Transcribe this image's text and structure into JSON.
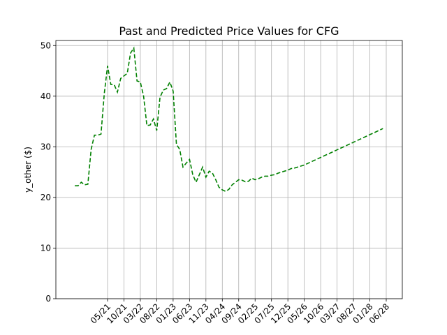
{
  "chart_data": {
    "type": "line",
    "title": "Past and Predicted Price Values for CFG",
    "xlabel": "",
    "ylabel": "y_other ($)",
    "ylim": [
      0,
      51
    ],
    "yticks": [
      0,
      10,
      20,
      30,
      40,
      50
    ],
    "grid": true,
    "x_ticks": [
      "05/21",
      "10/21",
      "03/22",
      "08/22",
      "01/23",
      "06/23",
      "11/23",
      "04/24",
      "09/24",
      "02/25",
      "07/25",
      "12/25",
      "05/26",
      "10/26",
      "03/27",
      "08/27",
      "01/28",
      "06/28"
    ],
    "series": [
      {
        "color": "#008000",
        "style": "dashed",
        "points": [
          [
            "2020-07",
            22.3
          ],
          [
            "2020-08",
            22.3
          ],
          [
            "2020-09",
            23.0
          ],
          [
            "2020-10",
            22.5
          ],
          [
            "2020-11",
            22.6
          ],
          [
            "2020-12",
            29.5
          ],
          [
            "2021-01",
            32.3
          ],
          [
            "2021-02",
            32.3
          ],
          [
            "2021-03",
            32.5
          ],
          [
            "2021-04",
            40.5
          ],
          [
            "2021-05",
            46.0
          ],
          [
            "2021-06",
            42.3
          ],
          [
            "2021-07",
            42.3
          ],
          [
            "2021-08",
            40.8
          ],
          [
            "2021-09",
            43.5
          ],
          [
            "2021-10",
            44.0
          ],
          [
            "2021-11",
            44.5
          ],
          [
            "2021-12",
            48.5
          ],
          [
            "2022-01",
            49.5
          ],
          [
            "2022-02",
            43.0
          ],
          [
            "2022-03",
            42.8
          ],
          [
            "2022-04",
            40.0
          ],
          [
            "2022-05",
            34.2
          ],
          [
            "2022-06",
            34.3
          ],
          [
            "2022-07",
            35.5
          ],
          [
            "2022-08",
            33.2
          ],
          [
            "2022-09",
            39.8
          ],
          [
            "2022-10",
            41.2
          ],
          [
            "2022-11",
            41.5
          ],
          [
            "2022-12",
            42.8
          ],
          [
            "2023-01",
            41.0
          ],
          [
            "2023-02",
            30.5
          ],
          [
            "2023-03",
            29.5
          ],
          [
            "2023-04",
            26.0
          ],
          [
            "2023-05",
            26.8
          ],
          [
            "2023-06",
            27.5
          ],
          [
            "2023-07",
            24.5
          ],
          [
            "2023-08",
            23.0
          ],
          [
            "2023-09",
            24.5
          ],
          [
            "2023-10",
            26.0
          ],
          [
            "2023-11",
            24.0
          ],
          [
            "2023-12",
            25.2
          ],
          [
            "2024-01",
            24.8
          ],
          [
            "2024-02",
            23.5
          ],
          [
            "2024-03",
            22.0
          ],
          [
            "2024-04",
            21.5
          ],
          [
            "2024-05",
            21.2
          ],
          [
            "2024-06",
            21.6
          ],
          [
            "2024-07",
            22.5
          ],
          [
            "2024-08",
            23.0
          ],
          [
            "2024-09",
            23.5
          ],
          [
            "2024-10",
            23.4
          ],
          [
            "2024-11",
            23.1
          ],
          [
            "2024-12",
            23.2
          ],
          [
            "2025-01",
            23.8
          ],
          [
            "2025-02",
            23.5
          ],
          [
            "2025-03",
            23.7
          ],
          [
            "2025-04",
            24.0
          ],
          [
            "2025-05",
            24.2
          ],
          [
            "2025-06",
            24.2
          ],
          [
            "2025-07",
            24.4
          ],
          [
            "2025-08",
            24.5
          ],
          [
            "2025-09",
            24.8
          ],
          [
            "2025-10",
            25.0
          ],
          [
            "2025-11",
            25.2
          ],
          [
            "2025-12",
            25.4
          ],
          [
            "2026-01",
            25.7
          ],
          [
            "2026-02",
            25.8
          ],
          [
            "2026-03",
            26.0
          ],
          [
            "2026-04",
            26.2
          ],
          [
            "2026-05",
            26.4
          ],
          [
            "2026-06",
            26.7
          ],
          [
            "2026-07",
            27.0
          ],
          [
            "2026-08",
            27.3
          ],
          [
            "2026-09",
            27.6
          ],
          [
            "2026-10",
            27.9
          ],
          [
            "2026-11",
            28.2
          ],
          [
            "2026-12",
            28.5
          ],
          [
            "2027-01",
            28.8
          ],
          [
            "2027-02",
            29.1
          ],
          [
            "2027-03",
            29.4
          ],
          [
            "2027-04",
            29.7
          ],
          [
            "2027-05",
            30.0
          ],
          [
            "2027-06",
            30.3
          ],
          [
            "2027-07",
            30.6
          ],
          [
            "2027-08",
            30.9
          ],
          [
            "2027-09",
            31.2
          ],
          [
            "2027-10",
            31.5
          ],
          [
            "2027-11",
            31.8
          ],
          [
            "2027-12",
            32.1
          ],
          [
            "2028-01",
            32.4
          ],
          [
            "2028-02",
            32.7
          ],
          [
            "2028-03",
            33.0
          ],
          [
            "2028-04",
            33.3
          ],
          [
            "2028-05",
            33.6
          ]
        ]
      }
    ]
  }
}
